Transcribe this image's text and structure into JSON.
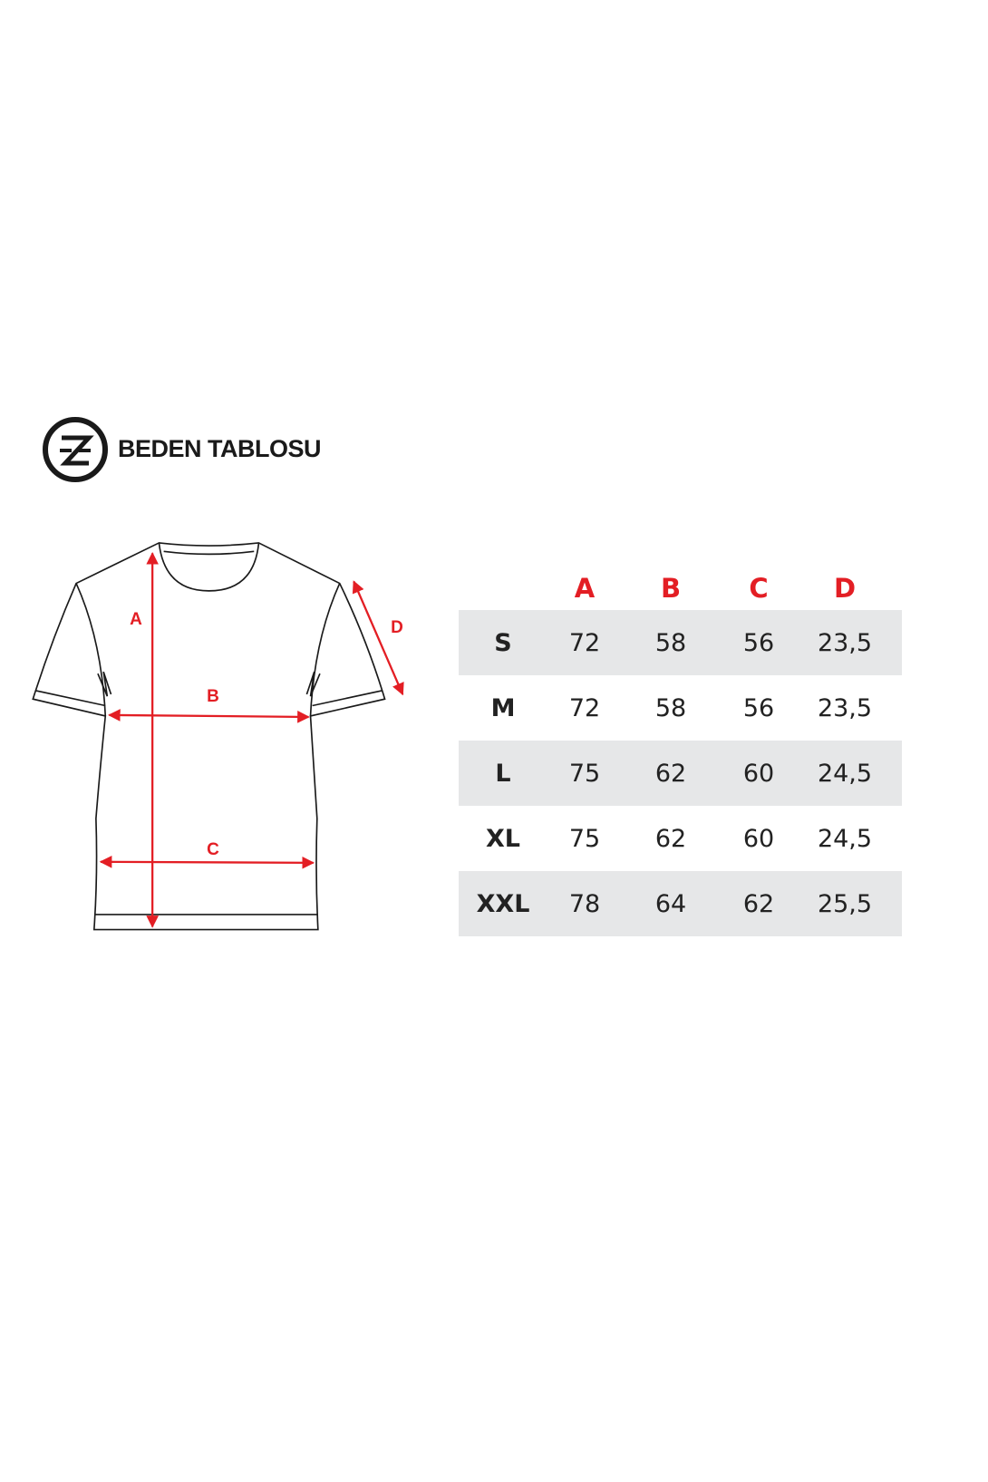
{
  "header": {
    "title": "BEDEN TABLOSU",
    "logo_icon": "ze-logo-icon"
  },
  "diagram": {
    "labels": [
      "A",
      "B",
      "C",
      "D"
    ],
    "arrow_color": "#e31e24"
  },
  "table": {
    "columns": [
      "A",
      "B",
      "C",
      "D"
    ],
    "header_color": "#e31e24",
    "row_shade": "#e6e7e8",
    "rows": [
      {
        "size": "S",
        "values": [
          "72",
          "58",
          "56",
          "23,5"
        ]
      },
      {
        "size": "M",
        "values": [
          "72",
          "58",
          "56",
          "23,5"
        ]
      },
      {
        "size": "L",
        "values": [
          "75",
          "62",
          "60",
          "24,5"
        ]
      },
      {
        "size": "XL",
        "values": [
          "75",
          "62",
          "60",
          "24,5"
        ]
      },
      {
        "size": "XXL",
        "values": [
          "78",
          "64",
          "62",
          "25,5"
        ]
      }
    ]
  }
}
